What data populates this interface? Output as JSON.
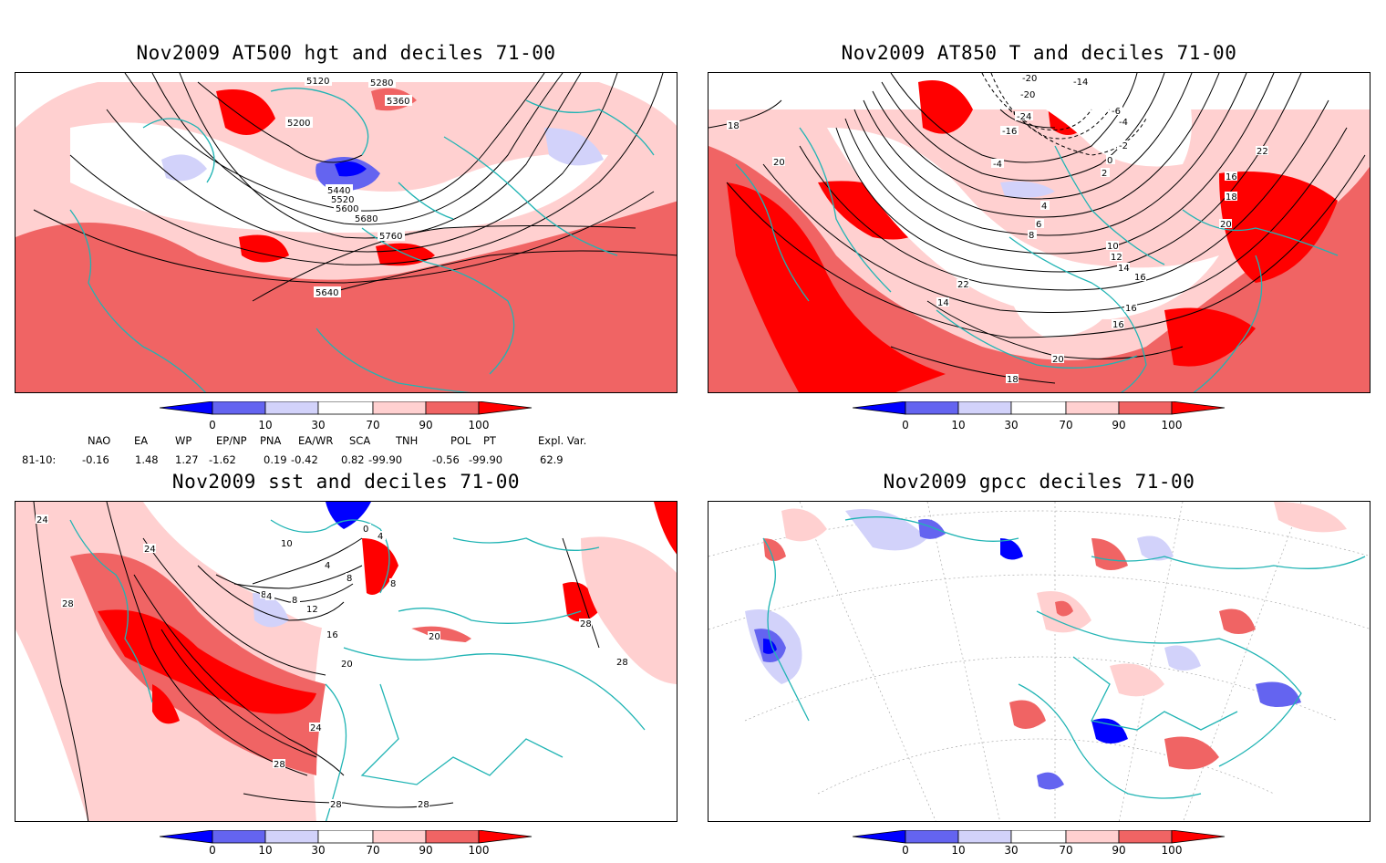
{
  "panels": [
    {
      "title": "Nov2009 AT500 hgt and deciles 71-00",
      "contour_labels": [
        "5120",
        "5280",
        "5360",
        "5200",
        "5440",
        "5520",
        "5600",
        "5680",
        "5760",
        "5640"
      ]
    },
    {
      "title": "Nov2009 AT850 T and deciles 71-00",
      "contour_labels": [
        "-20",
        "-14",
        "-20",
        "-24",
        "-16",
        "-6",
        "-4",
        "-4",
        "-2",
        "0",
        "2",
        "4",
        "6",
        "8",
        "10",
        "12",
        "14",
        "16",
        "18",
        "20",
        "22",
        "16",
        "18",
        "20",
        "22",
        "14",
        "16",
        "20",
        "18",
        "16"
      ]
    },
    {
      "title": "Nov2009 sst and deciles 71-00",
      "contour_labels": [
        "24",
        "28",
        "24",
        "0",
        "4",
        "10",
        "4",
        "8",
        "8",
        "8",
        "4",
        "8",
        "12",
        "16",
        "20",
        "20",
        "28",
        "24",
        "28",
        "28",
        "28",
        "28"
      ]
    },
    {
      "title": "Nov2009 gpcc deciles 71-00",
      "contour_labels": []
    }
  ],
  "colorbar": {
    "ticks": [
      "0",
      "10",
      "30",
      "70",
      "90",
      "100"
    ],
    "colors": [
      "#0000ff",
      "#6464f0",
      "#d2d2fa",
      "#ffffff",
      "#ffd0d0",
      "#f06464",
      "#ff0000"
    ]
  },
  "indices": {
    "names": [
      "NAO",
      "EA",
      "WP",
      "EP/NP",
      "PNA",
      "EA/WR",
      "SCA",
      "TNH",
      "POL",
      "PT",
      "Expl. Var."
    ],
    "row_label": "81-10:",
    "values": [
      "-0.16",
      "1.48",
      "1.27",
      "-1.62",
      "0.19",
      "-0.42",
      "0.82",
      "-99.90",
      "-0.56",
      "-99.90",
      "62.9"
    ]
  },
  "colors": {
    "coast": "#20b4b4",
    "contour": "#000000"
  }
}
